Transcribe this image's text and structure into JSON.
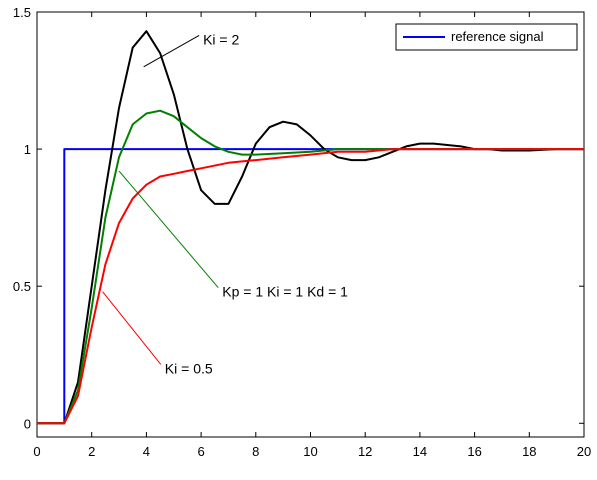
{
  "chart_data": {
    "type": "line",
    "xlim": [
      0,
      20
    ],
    "ylim": [
      -0.05,
      1.5
    ],
    "x_ticks": [
      0,
      2,
      4,
      6,
      8,
      10,
      12,
      14,
      16,
      18,
      20
    ],
    "x_tick_labels": [
      "0",
      "2",
      "4",
      "6",
      "8",
      "10",
      "12",
      "14",
      "16",
      "18",
      "20"
    ],
    "y_ticks": [
      0,
      0.5,
      1,
      1.5
    ],
    "y_tick_labels": [
      "0",
      "0.5",
      "1",
      "1.5"
    ],
    "grid": false,
    "legend": {
      "placement": "top-right",
      "entries": [
        "reference signal"
      ]
    },
    "series": [
      {
        "name": "reference signal",
        "color": "#0000ff",
        "x": [
          0,
          1,
          1,
          20
        ],
        "y": [
          0,
          0,
          1,
          1
        ]
      },
      {
        "color": "#000000",
        "x": [
          0,
          1,
          1.5,
          2,
          2.5,
          3,
          3.5,
          4,
          4.5,
          5,
          5.5,
          6,
          6.5,
          7,
          7.5,
          8,
          8.5,
          9,
          9.5,
          10,
          10.5,
          11,
          11.5,
          12,
          12.5,
          13,
          13.5,
          14,
          14.5,
          15,
          15.5,
          16,
          16.5,
          17,
          18,
          19,
          20
        ],
        "y": [
          0,
          0,
          0.15,
          0.5,
          0.85,
          1.15,
          1.37,
          1.43,
          1.35,
          1.2,
          1.0,
          0.85,
          0.8,
          0.8,
          0.9,
          1.02,
          1.08,
          1.1,
          1.09,
          1.05,
          1.0,
          0.97,
          0.96,
          0.96,
          0.97,
          0.99,
          1.01,
          1.02,
          1.02,
          1.015,
          1.01,
          1.0,
          1.0,
          0.995,
          0.995,
          1.0,
          1.0
        ]
      },
      {
        "color": "#008000",
        "x": [
          0,
          1,
          1.5,
          2,
          2.5,
          3,
          3.5,
          4,
          4.5,
          5,
          5.5,
          6,
          6.5,
          7,
          7.5,
          8,
          9,
          10,
          11,
          12,
          14,
          16,
          18,
          20
        ],
        "y": [
          0,
          0,
          0.12,
          0.42,
          0.75,
          0.97,
          1.09,
          1.13,
          1.14,
          1.12,
          1.08,
          1.04,
          1.01,
          0.99,
          0.98,
          0.98,
          0.985,
          0.99,
          1.0,
          1.0,
          1.0,
          1.0,
          1.0,
          1.0
        ]
      },
      {
        "color": "#ff0000",
        "x": [
          0,
          1,
          1.5,
          2,
          2.5,
          3,
          3.5,
          4,
          4.5,
          5,
          5.5,
          6,
          7,
          8,
          9,
          10,
          11,
          12,
          13,
          14,
          16,
          18,
          20
        ],
        "y": [
          0,
          0,
          0.1,
          0.35,
          0.58,
          0.73,
          0.82,
          0.87,
          0.9,
          0.91,
          0.92,
          0.93,
          0.95,
          0.96,
          0.97,
          0.98,
          0.99,
          0.99,
          1.0,
          1.0,
          1.0,
          1.0,
          1.0
        ]
      }
    ],
    "annotations": [
      {
        "text": "Ki = 2",
        "point": [
          3.9,
          1.3
        ],
        "text_at": [
          6.0,
          1.4
        ]
      },
      {
        "text": "Kp = 1  Ki = 1  Kd = 1",
        "point": [
          3.0,
          0.92
        ],
        "text_at": [
          6.7,
          0.48
        ]
      },
      {
        "text": "Ki = 0.5",
        "point": [
          2.4,
          0.48
        ],
        "text_at": [
          4.6,
          0.2
        ]
      }
    ]
  }
}
